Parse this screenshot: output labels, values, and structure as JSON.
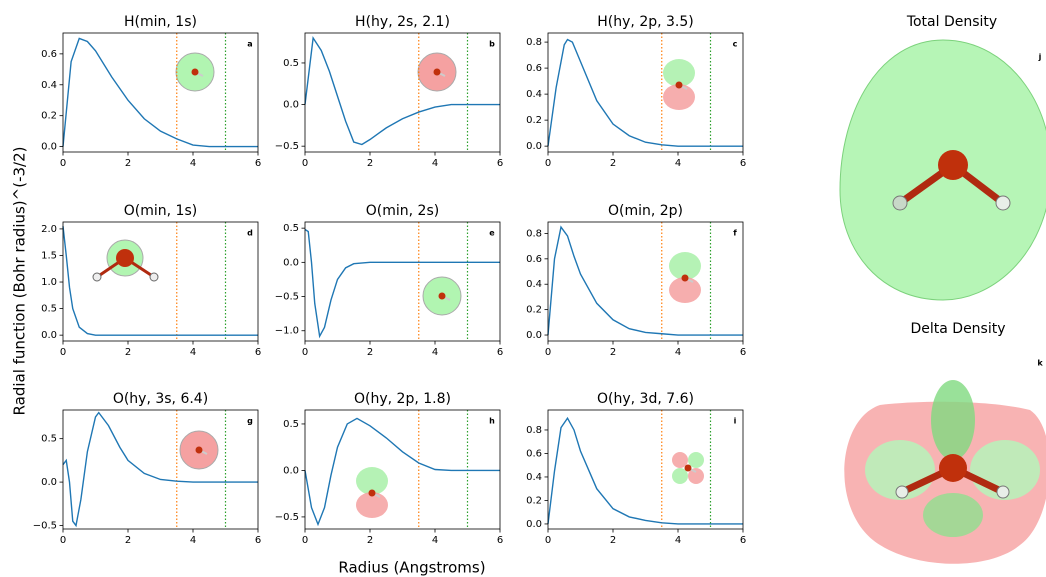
{
  "figure": {
    "ylabel": "Radial function (Bohr radius)^(-3/2)",
    "xlabel": "Radius (Angstroms)",
    "panels": [
      {
        "title": "Total Density",
        "label": "j"
      },
      {
        "title": "Delta Density",
        "label": "k"
      }
    ]
  },
  "chart_data": [
    {
      "type": "line",
      "title": "H(min, 1s)",
      "label": "a",
      "color": "#1f77b4",
      "x": [
        0,
        0.25,
        0.5,
        0.75,
        1,
        1.5,
        2,
        2.5,
        3,
        3.5,
        4,
        4.5,
        5,
        6
      ],
      "values": [
        0,
        0.55,
        0.7,
        0.68,
        0.62,
        0.45,
        0.3,
        0.18,
        0.1,
        0.05,
        0.01,
        0,
        0,
        0
      ],
      "xlim": [
        0,
        6
      ],
      "xticks": [
        0,
        2,
        4,
        6
      ],
      "ylim": [
        -0.035,
        0.735
      ],
      "yticks": [
        {
          "value": 0,
          "label": "0.0"
        },
        0.2,
        0.4,
        0.6
      ],
      "vlines": [
        {
          "value": 3.5,
          "color": "#ff7f0e"
        },
        {
          "value": 5,
          "color": "#2ca02c"
        }
      ]
    },
    {
      "type": "line",
      "title": "H(hy, 2s, 2.1)",
      "label": "b",
      "color": "#1f77b4",
      "x": [
        0,
        0.25,
        0.5,
        0.75,
        1,
        1.25,
        1.5,
        1.75,
        2,
        2.5,
        3,
        3.5,
        4,
        4.5,
        5,
        6
      ],
      "values": [
        0,
        0.8,
        0.65,
        0.4,
        0.1,
        -0.2,
        -0.45,
        -0.48,
        -0.42,
        -0.28,
        -0.17,
        -0.09,
        -0.03,
        0,
        0,
        0
      ],
      "xlim": [
        0,
        6
      ],
      "xticks": [
        0,
        2,
        4,
        6
      ],
      "ylim": [
        -0.57,
        0.86
      ],
      "yticks": [
        {
          "value": -0.5,
          "label": "−0.5"
        },
        {
          "value": 0,
          "label": "0.0"
        },
        0.5
      ],
      "vlines": [
        {
          "value": 3.5,
          "color": "#ff7f0e"
        },
        {
          "value": 5,
          "color": "#2ca02c"
        }
      ]
    },
    {
      "type": "line",
      "title": "H(hy, 2p, 3.5)",
      "label": "c",
      "color": "#1f77b4",
      "x": [
        0,
        0.25,
        0.5,
        0.6,
        0.75,
        1,
        1.5,
        2,
        2.5,
        3,
        3.5,
        4,
        6
      ],
      "values": [
        0,
        0.45,
        0.78,
        0.82,
        0.8,
        0.65,
        0.35,
        0.17,
        0.08,
        0.03,
        0.01,
        0,
        0
      ],
      "xlim": [
        0,
        6
      ],
      "xticks": [
        0,
        2,
        4,
        6
      ],
      "ylim": [
        -0.045,
        0.87
      ],
      "yticks": [
        {
          "value": 0,
          "label": "0.0"
        },
        0.2,
        0.4,
        0.6,
        0.8
      ],
      "vlines": [
        {
          "value": 3.5,
          "color": "#ff7f0e"
        },
        {
          "value": 5,
          "color": "#2ca02c"
        }
      ]
    },
    {
      "type": "line",
      "title": "O(min, 1s)",
      "label": "d",
      "color": "#1f77b4",
      "x": [
        0,
        0.1,
        0.2,
        0.3,
        0.5,
        0.75,
        1,
        6
      ],
      "values": [
        2.05,
        1.5,
        0.9,
        0.5,
        0.15,
        0.03,
        0,
        0
      ],
      "xlim": [
        0,
        6
      ],
      "xticks": [
        0,
        2,
        4,
        6
      ],
      "ylim": [
        -0.11,
        2.13
      ],
      "yticks": [
        {
          "value": 0,
          "label": "0.0"
        },
        0.5,
        {
          "value": 1,
          "label": "1.0"
        },
        1.5,
        {
          "value": 2,
          "label": "2.0"
        }
      ],
      "vlines": [
        {
          "value": 3.5,
          "color": "#ff7f0e"
        },
        {
          "value": 5,
          "color": "#2ca02c"
        }
      ]
    },
    {
      "type": "line",
      "title": "O(min, 2s)",
      "label": "e",
      "color": "#1f77b4",
      "x": [
        0,
        0.1,
        0.2,
        0.3,
        0.45,
        0.6,
        0.8,
        1,
        1.25,
        1.5,
        2,
        6
      ],
      "values": [
        0.48,
        0.45,
        0,
        -0.6,
        -1.08,
        -0.95,
        -0.55,
        -0.25,
        -0.08,
        -0.02,
        0,
        0
      ],
      "xlim": [
        0,
        6
      ],
      "xticks": [
        0,
        2,
        4,
        6
      ],
      "ylim": [
        -1.15,
        0.59
      ],
      "yticks": [
        {
          "value": -1,
          "label": "−1.0"
        },
        {
          "value": -0.5,
          "label": "−0.5"
        },
        {
          "value": 0,
          "label": "0.0"
        },
        0.5
      ],
      "vlines": [
        {
          "value": 3.5,
          "color": "#ff7f0e"
        },
        {
          "value": 5,
          "color": "#2ca02c"
        }
      ]
    },
    {
      "type": "line",
      "title": "O(min, 2p)",
      "label": "f",
      "color": "#1f77b4",
      "x": [
        0,
        0.2,
        0.4,
        0.6,
        0.8,
        1,
        1.5,
        2,
        2.5,
        3,
        3.5,
        4,
        6
      ],
      "values": [
        0,
        0.6,
        0.85,
        0.78,
        0.62,
        0.48,
        0.25,
        0.12,
        0.05,
        0.02,
        0.01,
        0,
        0
      ],
      "xlim": [
        0,
        6
      ],
      "xticks": [
        0,
        2,
        4,
        6
      ],
      "ylim": [
        -0.047,
        0.89
      ],
      "yticks": [
        {
          "value": 0,
          "label": "0.0"
        },
        0.2,
        0.4,
        0.6,
        0.8
      ],
      "vlines": [
        {
          "value": 3.5,
          "color": "#ff7f0e"
        },
        {
          "value": 5,
          "color": "#2ca02c"
        }
      ]
    },
    {
      "type": "line",
      "title": "O(hy, 3s, 6.4)",
      "label": "g",
      "color": "#1f77b4",
      "x": [
        0,
        0.1,
        0.2,
        0.3,
        0.4,
        0.55,
        0.75,
        1,
        1.1,
        1.4,
        1.75,
        2,
        2.5,
        3,
        3.5,
        4,
        6
      ],
      "values": [
        0.2,
        0.25,
        0,
        -0.45,
        -0.5,
        -0.2,
        0.35,
        0.75,
        0.8,
        0.65,
        0.4,
        0.25,
        0.1,
        0.03,
        0.01,
        0,
        0
      ],
      "xlim": [
        0,
        6
      ],
      "xticks": [
        0,
        2,
        4,
        6
      ],
      "ylim": [
        -0.54,
        0.83
      ],
      "yticks": [
        {
          "value": -0.5,
          "label": "−0.5"
        },
        {
          "value": 0,
          "label": "0.0"
        },
        0.5
      ],
      "vlines": [
        {
          "value": 3.5,
          "color": "#ff7f0e"
        },
        {
          "value": 5,
          "color": "#2ca02c"
        }
      ]
    },
    {
      "type": "line",
      "title": "O(hy, 2p, 1.8)",
      "label": "h",
      "color": "#1f77b4",
      "x": [
        0,
        0.2,
        0.4,
        0.6,
        0.8,
        1,
        1.3,
        1.6,
        2,
        2.5,
        3,
        3.5,
        4,
        4.5,
        6
      ],
      "values": [
        0,
        -0.4,
        -0.58,
        -0.4,
        -0.05,
        0.25,
        0.5,
        0.56,
        0.48,
        0.35,
        0.2,
        0.08,
        0.01,
        0,
        0
      ],
      "xlim": [
        0,
        6
      ],
      "xticks": [
        0,
        2,
        4,
        6
      ],
      "ylim": [
        -0.63,
        0.65
      ],
      "yticks": [
        {
          "value": -0.5,
          "label": "−0.5"
        },
        {
          "value": 0,
          "label": "0.0"
        },
        0.5
      ],
      "vlines": [
        {
          "value": 3.5,
          "color": "#ff7f0e"
        },
        {
          "value": 5,
          "color": "#2ca02c"
        }
      ]
    },
    {
      "type": "line",
      "title": "O(hy, 3d, 7.6)",
      "label": "i",
      "color": "#1f77b4",
      "x": [
        0,
        0.2,
        0.4,
        0.6,
        0.8,
        1,
        1.5,
        2,
        2.5,
        3,
        3.5,
        4,
        6
      ],
      "values": [
        0,
        0.45,
        0.82,
        0.9,
        0.8,
        0.62,
        0.3,
        0.13,
        0.06,
        0.03,
        0.01,
        0,
        0
      ],
      "xlim": [
        0,
        6
      ],
      "xticks": [
        0,
        2,
        4,
        6
      ],
      "ylim": [
        -0.043,
        0.97
      ],
      "yticks": [
        {
          "value": 0,
          "label": "0.0"
        },
        0.2,
        0.4,
        0.6,
        0.8
      ],
      "vlines": [
        {
          "value": 3.5,
          "color": "#ff7f0e"
        },
        {
          "value": 5,
          "color": "#2ca02c"
        }
      ]
    }
  ]
}
